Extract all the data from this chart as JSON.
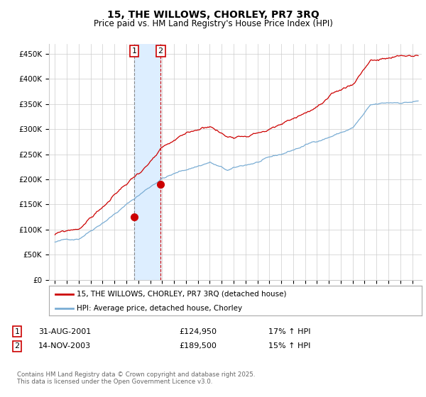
{
  "title": "15, THE WILLOWS, CHORLEY, PR7 3RQ",
  "subtitle": "Price paid vs. HM Land Registry's House Price Index (HPI)",
  "ylabel_ticks": [
    "£0",
    "£50K",
    "£100K",
    "£150K",
    "£200K",
    "£250K",
    "£300K",
    "£350K",
    "£400K",
    "£450K"
  ],
  "ylim": [
    0,
    470000
  ],
  "xlim_start": 1994.5,
  "xlim_end": 2025.8,
  "sale1_date": 2001.66,
  "sale1_price": 124950,
  "sale1_label": "1",
  "sale1_text": "31-AUG-2001",
  "sale1_amount": "£124,950",
  "sale1_hpi": "17% ↑ HPI",
  "sale2_date": 2003.87,
  "sale2_price": 189500,
  "sale2_label": "2",
  "sale2_text": "14-NOV-2003",
  "sale2_amount": "£189,500",
  "sale2_hpi": "15% ↑ HPI",
  "legend_line1": "15, THE WILLOWS, CHORLEY, PR7 3RQ (detached house)",
  "legend_line2": "HPI: Average price, detached house, Chorley",
  "footer": "Contains HM Land Registry data © Crown copyright and database right 2025.\nThis data is licensed under the Open Government Licence v3.0.",
  "line_color_red": "#cc0000",
  "line_color_blue": "#7aadd4",
  "background_color": "#ffffff",
  "highlight_color": "#ddeeff",
  "grid_color": "#cccccc",
  "sale1_vline_color": "#888888",
  "sale2_vline_color": "#cc0000"
}
